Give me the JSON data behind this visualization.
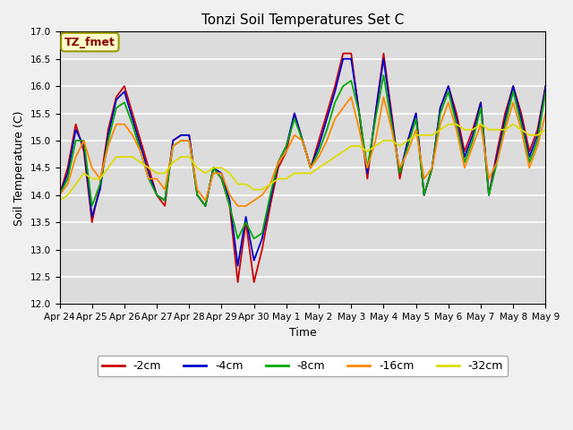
{
  "title": "Tonzi Soil Temperatures Set C",
  "xlabel": "Time",
  "ylabel": "Soil Temperature (C)",
  "ylim": [
    12.0,
    17.0
  ],
  "yticks": [
    12.0,
    12.5,
    13.0,
    13.5,
    14.0,
    14.5,
    15.0,
    15.5,
    16.0,
    16.5,
    17.0
  ],
  "xtick_labels": [
    "Apr 24",
    "Apr 25",
    "Apr 26",
    "Apr 27",
    "Apr 28",
    "Apr 29",
    "Apr 30",
    "May 1",
    "May 2",
    "May 3",
    "May 4",
    "May 5",
    "May 6",
    "May 7",
    "May 8",
    "May 9"
  ],
  "line_colors": [
    "#cc0000",
    "#0000cc",
    "#00aa00",
    "#ff8800",
    "#dddd00"
  ],
  "line_labels": [
    "-2cm",
    "-4cm",
    "-8cm",
    "-16cm",
    "-32cm"
  ],
  "bg_color": "#dcdcdc",
  "annotation_text": "TZ_fmet",
  "annotation_color": "#880000",
  "annotation_bg": "#ffffcc",
  "annotation_edge": "#999900"
}
